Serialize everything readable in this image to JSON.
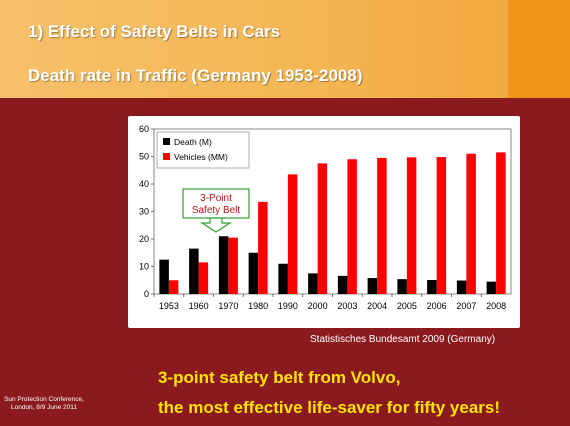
{
  "slide": {
    "title_line1": "1) Effect of Safety Belts in Cars",
    "title_line2": "Death rate in Traffic (Germany 1953-2008)",
    "source": "Statistisches Bundesamt 2009 (Germany)",
    "claim_line1": "3-point safety belt from Volvo,",
    "claim_line2": "the most effective life-saver for fifty years!",
    "footer_line1": "Sun Protection Conference,",
    "footer_line2": "London, 8/9 June 2011",
    "colors": {
      "background": "#8b1a1f",
      "header": "#f4b653",
      "header_accent": "#ef9416",
      "claim": "#ffe400"
    }
  },
  "chart_data": {
    "type": "bar",
    "categories": [
      "1953",
      "1960",
      "1970",
      "1980",
      "1990",
      "2000",
      "2003",
      "2004",
      "2005",
      "2006",
      "2007",
      "2008"
    ],
    "series": [
      {
        "name": "Death (M)",
        "color": "#000000",
        "values": [
          12.5,
          16.5,
          21,
          15,
          11,
          7.5,
          6.6,
          5.8,
          5.4,
          5.1,
          4.9,
          4.5
        ]
      },
      {
        "name": "Vehicles (MM)",
        "color": "#ff0000",
        "values": [
          5,
          11.5,
          20.5,
          33.5,
          43.5,
          47.5,
          49,
          49.5,
          49.7,
          49.8,
          51,
          51.5
        ]
      }
    ],
    "ylim": [
      0,
      60
    ],
    "yticks": [
      0,
      10,
      20,
      30,
      40,
      50,
      60
    ],
    "legend_position": "top-left",
    "grid": false,
    "annotation": {
      "line1": "3-Point",
      "line2": "Safety Belt",
      "category": "1970",
      "color": "#2ea12e"
    }
  }
}
